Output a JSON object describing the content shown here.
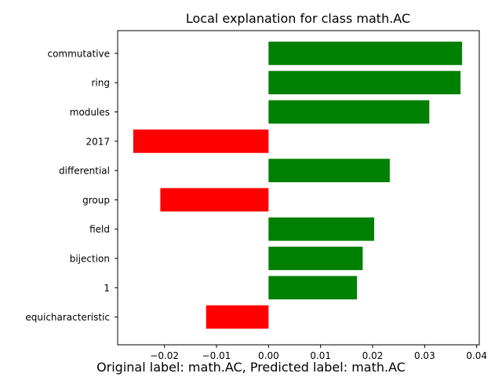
{
  "chart_data": {
    "type": "bar",
    "orientation": "horizontal",
    "title": "Local explanation for class math.AC",
    "xlabel": "",
    "ylabel": "",
    "categories": [
      "commutative",
      "ring",
      "modules",
      "2017",
      "differential",
      "group",
      "field",
      "bijection",
      "1",
      "equicharacteristic"
    ],
    "values": [
      0.0372,
      0.0369,
      0.0309,
      -0.026,
      0.0233,
      -0.0208,
      0.0203,
      0.0181,
      0.017,
      -0.012
    ],
    "xlim": [
      -0.029,
      0.0405
    ],
    "xticks": [
      -0.02,
      -0.01,
      0.0,
      0.01,
      0.02,
      0.03,
      0.04
    ],
    "xtick_labels": [
      "−0.02",
      "−0.01",
      "0.00",
      "0.01",
      "0.02",
      "0.03",
      "0.04"
    ],
    "colors": {
      "positive": "#008000",
      "negative": "#ff0000"
    },
    "grid": false,
    "legend": "none"
  },
  "caption": "Original label: math.AC, Predicted label: math.AC"
}
